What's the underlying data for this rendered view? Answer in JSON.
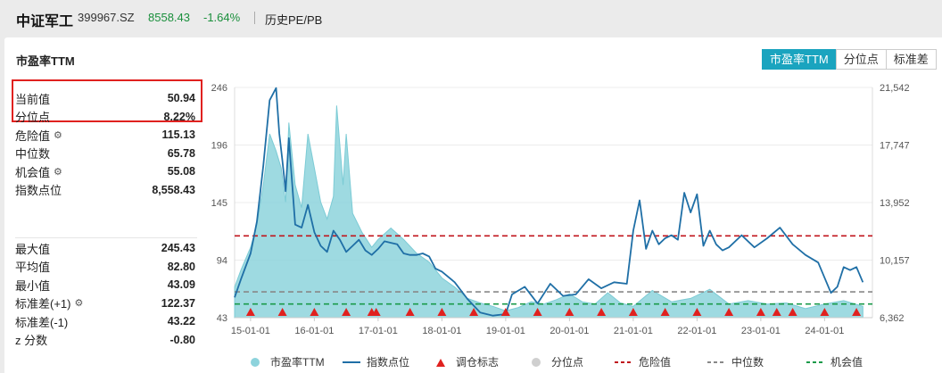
{
  "header": {
    "title": "中证军工",
    "code": "399967.SZ",
    "price": "8558.43",
    "change": "-1.64%",
    "link": "历史PE/PB"
  },
  "panel": {
    "title": "市盈率TTM",
    "tabs": [
      {
        "label": "市盈率TTM",
        "active": true
      },
      {
        "label": "分位点",
        "active": false
      },
      {
        "label": "标准差",
        "active": false
      }
    ]
  },
  "stats_top": [
    {
      "label": "当前值",
      "value": "50.94",
      "gear": false
    },
    {
      "label": "分位点",
      "value": "8.22%",
      "gear": false
    },
    {
      "label": "危险值",
      "value": "115.13",
      "gear": true
    },
    {
      "label": "中位数",
      "value": "65.78",
      "gear": false
    },
    {
      "label": "机会值",
      "value": "55.08",
      "gear": true
    },
    {
      "label": "指数点位",
      "value": "8,558.43",
      "gear": false
    }
  ],
  "stats_bottom": [
    {
      "label": "最大值",
      "value": "245.43",
      "gear": false
    },
    {
      "label": "平均值",
      "value": "82.80",
      "gear": false
    },
    {
      "label": "最小值",
      "value": "43.09",
      "gear": false
    },
    {
      "label": "标准差(+1)",
      "value": "122.37",
      "gear": true
    },
    {
      "label": "标准差(-1)",
      "value": "43.22",
      "gear": false
    },
    {
      "label": "z 分数",
      "value": "-0.80",
      "gear": false
    }
  ],
  "colors": {
    "accent": "#1aa4bf",
    "area": "#8dd3dc",
    "index_line": "#1f6fa6",
    "danger": "#c0141c",
    "median": "#888888",
    "opportunity": "#1a9a4a",
    "marker": "#e0211f",
    "down": "#1a8f3c"
  },
  "legend": [
    {
      "label": "市盈率TTM",
      "icon": "circle",
      "color": "#8dd3dc"
    },
    {
      "label": "指数点位",
      "icon": "line",
      "color": "#1f6fa6"
    },
    {
      "label": "调仓标志",
      "icon": "triangle",
      "color": "#e0211f"
    },
    {
      "label": "分位点",
      "icon": "circle",
      "color": "#cfcfcf"
    },
    {
      "label": "危险值",
      "icon": "dash",
      "color": "#c0141c"
    },
    {
      "label": "中位数",
      "icon": "dash",
      "color": "#888888"
    },
    {
      "label": "机会值",
      "icon": "dash",
      "color": "#1a9a4a"
    }
  ],
  "chart_data": {
    "type": "area",
    "y_left": {
      "ticks": [
        "246",
        "196",
        "145",
        "94",
        "43"
      ],
      "range": [
        43,
        246
      ]
    },
    "y_right": {
      "ticks": [
        "21,542",
        "17,747",
        "13,952",
        "10,157",
        "6,362"
      ],
      "range": [
        6362,
        21542
      ]
    },
    "x_axis": {
      "ticks": [
        "15-01-01",
        "16-01-01",
        "17-01-01",
        "18-01-01",
        "19-01-01",
        "20-01-01",
        "21-01-01",
        "22-01-01",
        "23-01-01",
        "24-01-01"
      ]
    },
    "reference_lines": {
      "danger": 115.13,
      "median": 65.78,
      "opportunity": 55.08
    },
    "series": [
      {
        "name": "市盈率TTM",
        "x": [
          2014.75,
          2014.85,
          2015.0,
          2015.1,
          2015.2,
          2015.3,
          2015.4,
          2015.48,
          2015.55,
          2015.6,
          2015.7,
          2015.8,
          2015.9,
          2016.0,
          2016.1,
          2016.2,
          2016.3,
          2016.35,
          2016.45,
          2016.5,
          2016.6,
          2016.75,
          2016.9,
          2017.0,
          2017.2,
          2017.4,
          2017.6,
          2017.8,
          2018.0,
          2018.2,
          2018.4,
          2018.6,
          2018.8,
          2019.0,
          2019.2,
          2019.4,
          2019.6,
          2019.8,
          2020.0,
          2020.2,
          2020.4,
          2020.6,
          2020.8,
          2021.0,
          2021.3,
          2021.6,
          2021.9,
          2022.2,
          2022.5,
          2022.8,
          2023.1,
          2023.4,
          2023.7,
          2024.0,
          2024.3,
          2024.6
        ],
        "y": [
          70,
          85,
          105,
          125,
          160,
          205,
          190,
          175,
          145,
          215,
          160,
          140,
          205,
          175,
          145,
          130,
          150,
          230,
          160,
          205,
          135,
          118,
          105,
          112,
          122,
          112,
          100,
          92,
          78,
          70,
          60,
          56,
          53,
          49,
          52,
          57,
          55,
          59,
          64,
          57,
          55,
          65,
          56,
          53,
          67,
          57,
          60,
          68,
          55,
          58,
          55,
          56,
          51,
          55,
          58,
          53
        ]
      },
      {
        "name": "指数点位",
        "x": [
          2014.75,
          2014.85,
          2015.0,
          2015.1,
          2015.2,
          2015.3,
          2015.4,
          2015.45,
          2015.5,
          2015.55,
          2015.6,
          2015.7,
          2015.8,
          2015.9,
          2016.0,
          2016.1,
          2016.2,
          2016.3,
          2016.4,
          2016.5,
          2016.6,
          2016.7,
          2016.8,
          2016.9,
          2017.0,
          2017.1,
          2017.2,
          2017.3,
          2017.4,
          2017.5,
          2017.6,
          2017.7,
          2017.8,
          2017.9,
          2018.0,
          2018.2,
          2018.4,
          2018.6,
          2018.8,
          2019.0,
          2019.1,
          2019.3,
          2019.5,
          2019.7,
          2019.9,
          2020.1,
          2020.3,
          2020.5,
          2020.7,
          2020.9,
          2021.0,
          2021.1,
          2021.2,
          2021.3,
          2021.4,
          2021.5,
          2021.6,
          2021.7,
          2021.8,
          2021.9,
          2022.0,
          2022.1,
          2022.2,
          2022.3,
          2022.4,
          2022.5,
          2022.7,
          2022.9,
          2023.1,
          2023.3,
          2023.5,
          2023.7,
          2023.9,
          2024.1,
          2024.2,
          2024.3,
          2024.4,
          2024.5,
          2024.6
        ],
        "y": [
          7700,
          8900,
          10600,
          12700,
          16400,
          20700,
          21500,
          18500,
          16700,
          14700,
          18200,
          12500,
          12300,
          13800,
          12000,
          11100,
          10700,
          12100,
          11500,
          10700,
          11100,
          11500,
          10800,
          10500,
          10900,
          11400,
          11300,
          11200,
          10600,
          10500,
          10500,
          10600,
          10400,
          9600,
          9400,
          8700,
          7600,
          6700,
          6500,
          6600,
          7900,
          8400,
          7300,
          8600,
          7800,
          7900,
          8900,
          8300,
          8700,
          8600,
          12100,
          14100,
          10900,
          12100,
          11200,
          11600,
          11800,
          11500,
          14600,
          13300,
          14500,
          11100,
          12100,
          11200,
          10800,
          11000,
          11800,
          11000,
          11600,
          12300,
          11200,
          10500,
          10000,
          8000,
          8400,
          9700,
          9500,
          9700,
          8700
        ]
      }
    ],
    "rebalance_markers": [
      2015.0,
      2015.5,
      2016.0,
      2016.5,
      2016.9,
      2016.97,
      2017.5,
      2018.0,
      2018.5,
      2019.0,
      2019.5,
      2020.0,
      2020.5,
      2021.0,
      2021.5,
      2022.0,
      2022.5,
      2023.0,
      2023.25,
      2023.5,
      2024.0,
      2024.5
    ]
  }
}
